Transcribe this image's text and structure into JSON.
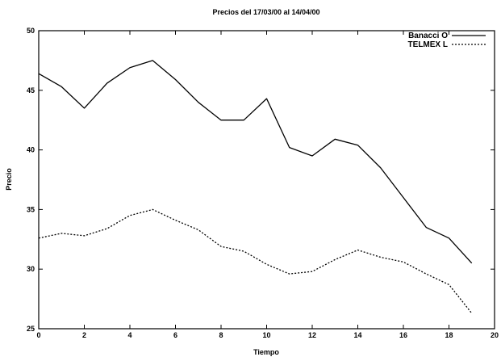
{
  "chart_data": {
    "type": "line",
    "title": "Precios del 17/03/00 al 14/04/00",
    "xlabel": "Tiempo",
    "ylabel": "Precio",
    "xlim": [
      0,
      20
    ],
    "ylim": [
      25,
      50
    ],
    "xticks": [
      0,
      2,
      4,
      6,
      8,
      10,
      12,
      14,
      16,
      18,
      20
    ],
    "yticks": [
      25,
      30,
      35,
      40,
      45,
      50
    ],
    "grid": false,
    "legend_position": "top-right",
    "x": [
      0,
      1,
      2,
      3,
      4,
      5,
      6,
      7,
      8,
      9,
      10,
      11,
      12,
      13,
      14,
      15,
      16,
      17,
      18,
      19
    ],
    "series": [
      {
        "name": "Banacci O",
        "style": "solid",
        "color": "#000000",
        "values": [
          46.4,
          45.3,
          43.5,
          45.6,
          46.9,
          47.5,
          45.9,
          44.0,
          42.5,
          42.5,
          44.3,
          40.2,
          39.5,
          40.9,
          40.4,
          38.5,
          36.0,
          33.5,
          32.6,
          30.5
        ]
      },
      {
        "name": "TELMEX L",
        "style": "dashed",
        "color": "#000000",
        "values": [
          32.6,
          33.0,
          32.8,
          33.4,
          34.5,
          35.0,
          34.1,
          33.3,
          31.9,
          31.5,
          30.4,
          29.6,
          29.8,
          30.8,
          31.6,
          31.0,
          30.6,
          29.6,
          28.7,
          26.3
        ]
      }
    ]
  }
}
